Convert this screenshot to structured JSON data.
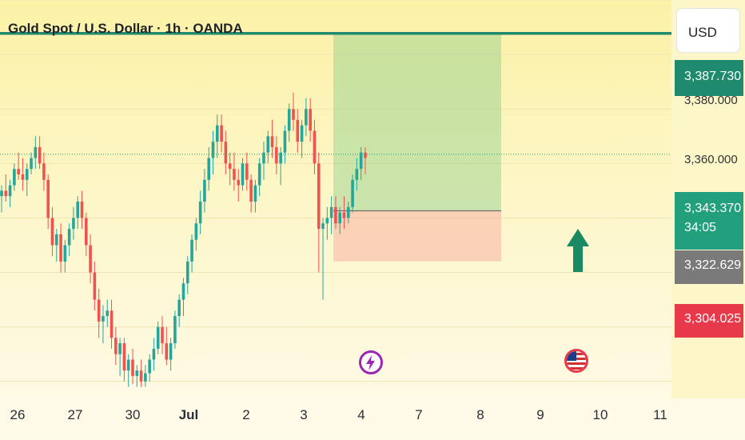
{
  "header": {
    "title": "Gold Spot / U.S. Dollar · 1h · OANDA"
  },
  "currency_button": {
    "label": "USD"
  },
  "price_scale": {
    "ticks": [
      "3,380.000",
      "3,360.000"
    ],
    "tags": {
      "target": {
        "label": "3,387.730",
        "value": 3387.73,
        "color": "#1f8a6e"
      },
      "current": {
        "label": "3,343.370",
        "countdown": "34:05",
        "value": 3343.37,
        "color": "#22a07d"
      },
      "entry": {
        "label": "3,322.629",
        "value": 3322.629,
        "color": "#7a7a7a"
      },
      "stop": {
        "label": "3,304.025",
        "value": 3304.025,
        "color": "#e8394a"
      }
    }
  },
  "x_axis": {
    "ticks": [
      "26",
      "27",
      "30",
      "Jul",
      "2",
      "3",
      "4",
      "7",
      "8",
      "9",
      "10",
      "11"
    ]
  },
  "icons": {
    "arrow": "up-arrow-icon",
    "lightning": "lightning-icon",
    "flag": "us-flag-icon",
    "up_color": "#26a69a",
    "down_color": "#ef5350",
    "event_color": "#9c27b0"
  },
  "chart_data": {
    "type": "candlestick",
    "title": "Gold Spot / U.S. Dollar · 1h · OANDA",
    "y_unit": "USD",
    "ylim": [
      3257,
      3400
    ],
    "x_ticks": [
      "26",
      "27",
      "30",
      "Jul",
      "2",
      "3",
      "4",
      "7",
      "8",
      "9",
      "10",
      "11"
    ],
    "horizontal_line": 3387.73,
    "current_price": 3343.37,
    "position": {
      "direction": "long",
      "entry": 3322.629,
      "target": 3387.73,
      "stop": 3304.025
    },
    "candles": [
      [
        3328,
        3332,
        3322,
        3330
      ],
      [
        3330,
        3336,
        3326,
        3328
      ],
      [
        3328,
        3334,
        3324,
        3332
      ],
      [
        3332,
        3340,
        3330,
        3338
      ],
      [
        3338,
        3344,
        3334,
        3336
      ],
      [
        3336,
        3342,
        3330,
        3334
      ],
      [
        3334,
        3340,
        3328,
        3338
      ],
      [
        3338,
        3344,
        3336,
        3342
      ],
      [
        3342,
        3350,
        3338,
        3346
      ],
      [
        3346,
        3350,
        3338,
        3340
      ],
      [
        3340,
        3344,
        3330,
        3334
      ],
      [
        3334,
        3336,
        3316,
        3320
      ],
      [
        3320,
        3324,
        3306,
        3310
      ],
      [
        3310,
        3316,
        3304,
        3314
      ],
      [
        3314,
        3318,
        3300,
        3304
      ],
      [
        3304,
        3312,
        3300,
        3310
      ],
      [
        3310,
        3318,
        3306,
        3316
      ],
      [
        3316,
        3324,
        3312,
        3320
      ],
      [
        3320,
        3328,
        3316,
        3326
      ],
      [
        3326,
        3330,
        3316,
        3320
      ],
      [
        3320,
        3322,
        3306,
        3310
      ],
      [
        3310,
        3314,
        3296,
        3300
      ],
      [
        3300,
        3304,
        3286,
        3290
      ],
      [
        3290,
        3294,
        3276,
        3282
      ],
      [
        3282,
        3288,
        3274,
        3284
      ],
      [
        3284,
        3290,
        3280,
        3286
      ],
      [
        3286,
        3290,
        3272,
        3276
      ],
      [
        3276,
        3280,
        3266,
        3270
      ],
      [
        3270,
        3276,
        3262,
        3274
      ],
      [
        3274,
        3276,
        3260,
        3264
      ],
      [
        3264,
        3270,
        3258,
        3268
      ],
      [
        3268,
        3272,
        3259,
        3262
      ],
      [
        3262,
        3266,
        3258,
        3264
      ],
      [
        3264,
        3268,
        3258,
        3260
      ],
      [
        3260,
        3266,
        3258,
        3263
      ],
      [
        3263,
        3270,
        3260,
        3268
      ],
      [
        3268,
        3276,
        3264,
        3272
      ],
      [
        3272,
        3282,
        3270,
        3280
      ],
      [
        3280,
        3284,
        3270,
        3274
      ],
      [
        3274,
        3280,
        3266,
        3268
      ],
      [
        3268,
        3276,
        3264,
        3274
      ],
      [
        3274,
        3286,
        3272,
        3284
      ],
      [
        3284,
        3292,
        3280,
        3290
      ],
      [
        3290,
        3298,
        3284,
        3296
      ],
      [
        3296,
        3306,
        3292,
        3304
      ],
      [
        3304,
        3314,
        3300,
        3312
      ],
      [
        3312,
        3320,
        3308,
        3318
      ],
      [
        3318,
        3330,
        3314,
        3326
      ],
      [
        3326,
        3338,
        3322,
        3334
      ],
      [
        3334,
        3346,
        3330,
        3342
      ],
      [
        3342,
        3352,
        3336,
        3348
      ],
      [
        3348,
        3358,
        3342,
        3354
      ],
      [
        3354,
        3358,
        3344,
        3348
      ],
      [
        3348,
        3352,
        3336,
        3340
      ],
      [
        3340,
        3344,
        3332,
        3338
      ],
      [
        3338,
        3344,
        3330,
        3334
      ],
      [
        3334,
        3338,
        3326,
        3332
      ],
      [
        3332,
        3342,
        3330,
        3340
      ],
      [
        3340,
        3344,
        3330,
        3334
      ],
      [
        3334,
        3336,
        3322,
        3326
      ],
      [
        3326,
        3334,
        3322,
        3332
      ],
      [
        3332,
        3342,
        3328,
        3340
      ],
      [
        3340,
        3348,
        3334,
        3344
      ],
      [
        3344,
        3352,
        3340,
        3350
      ],
      [
        3350,
        3356,
        3342,
        3346
      ],
      [
        3346,
        3350,
        3336,
        3340
      ],
      [
        3340,
        3346,
        3332,
        3344
      ],
      [
        3344,
        3354,
        3340,
        3352
      ],
      [
        3352,
        3362,
        3348,
        3360
      ],
      [
        3360,
        3366,
        3352,
        3356
      ],
      [
        3356,
        3360,
        3344,
        3348
      ],
      [
        3348,
        3356,
        3342,
        3354
      ],
      [
        3354,
        3364,
        3350,
        3360
      ],
      [
        3360,
        3364,
        3348,
        3352
      ],
      [
        3352,
        3356,
        3336,
        3340
      ],
      [
        3340,
        3344,
        3300,
        3316
      ],
      [
        3316,
        3320,
        3290,
        3318
      ],
      [
        3318,
        3324,
        3312,
        3320
      ],
      [
        3320,
        3328,
        3314,
        3324
      ],
      [
        3324,
        3328,
        3316,
        3318
      ],
      [
        3318,
        3324,
        3314,
        3322
      ],
      [
        3322,
        3328,
        3316,
        3320
      ],
      [
        3320,
        3326,
        3318,
        3324
      ],
      [
        3324,
        3336,
        3322,
        3334
      ],
      [
        3334,
        3342,
        3330,
        3338
      ],
      [
        3338,
        3346,
        3334,
        3344
      ],
      [
        3344,
        3346,
        3336,
        3342
      ]
    ]
  }
}
